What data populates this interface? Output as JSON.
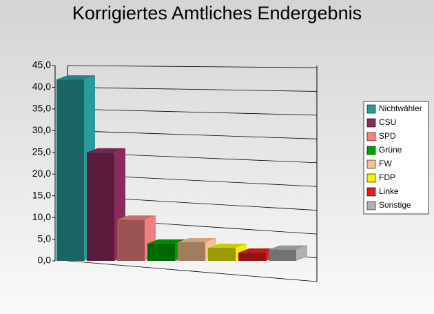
{
  "chart_data": {
    "type": "bar",
    "title": "Korrigiertes Amtliches Endergebnis",
    "categories": [
      "Nichtwähler",
      "CSU",
      "SPD",
      "Grüne",
      "FW",
      "FDP",
      "Linke",
      "Sonstige"
    ],
    "values": [
      41.8,
      25.0,
      9.5,
      4.0,
      4.3,
      3.0,
      1.9,
      2.6
    ],
    "colors": [
      "#2a9a9a",
      "#8b2a5e",
      "#f08080",
      "#00a000",
      "#f5c090",
      "#f0f000",
      "#e02020",
      "#b0b0b0"
    ],
    "ylim": [
      0,
      45
    ],
    "yticks": [
      {
        "value": 0,
        "label": "0,0"
      },
      {
        "value": 5,
        "label": "5,0"
      },
      {
        "value": 10,
        "label": "10,0"
      },
      {
        "value": 15,
        "label": "15,0"
      },
      {
        "value": 20,
        "label": "20,0"
      },
      {
        "value": 25,
        "label": "25,0"
      },
      {
        "value": 30,
        "label": "30,0"
      },
      {
        "value": 35,
        "label": "35,0"
      },
      {
        "value": 40,
        "label": "40,0"
      },
      {
        "value": 45,
        "label": "45,0"
      }
    ],
    "grid": true
  }
}
